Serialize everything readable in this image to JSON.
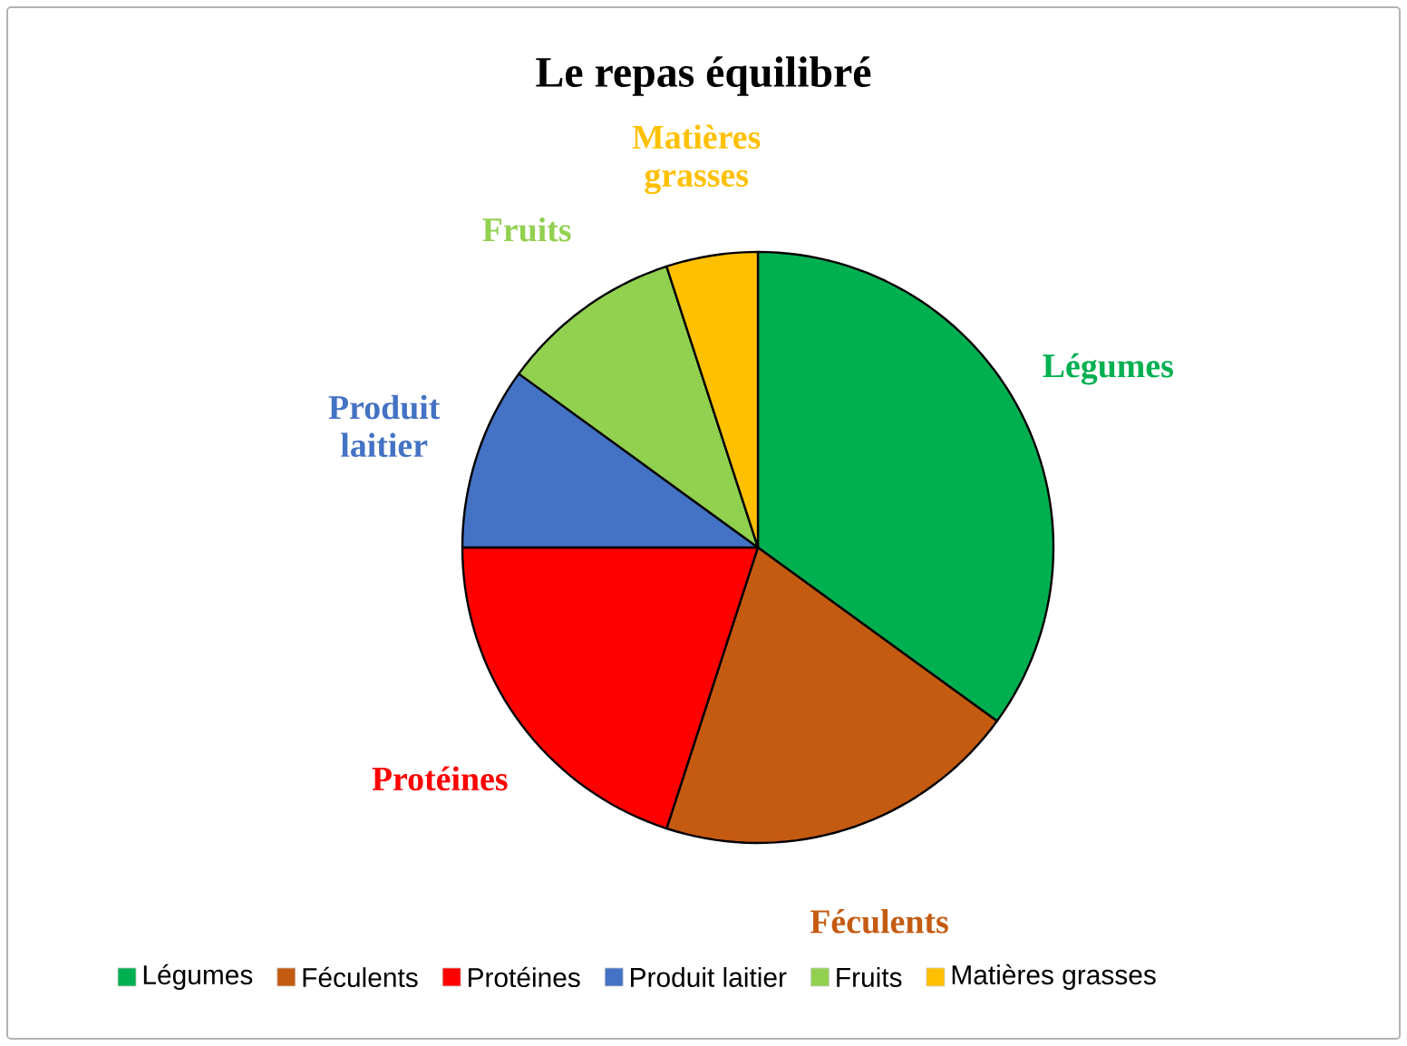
{
  "chart_data": {
    "type": "pie",
    "title": "Le repas équilibré",
    "categories": [
      "Légumes",
      "Féculents",
      "Protéines",
      "Produit laitier",
      "Fruits",
      "Matières grasses"
    ],
    "values": [
      35,
      20,
      20,
      10,
      10,
      5
    ],
    "colors": [
      "#00b050",
      "#c55a11",
      "#ff0000",
      "#4472c4",
      "#92d050",
      "#ffc000"
    ],
    "legend": "bottom"
  }
}
